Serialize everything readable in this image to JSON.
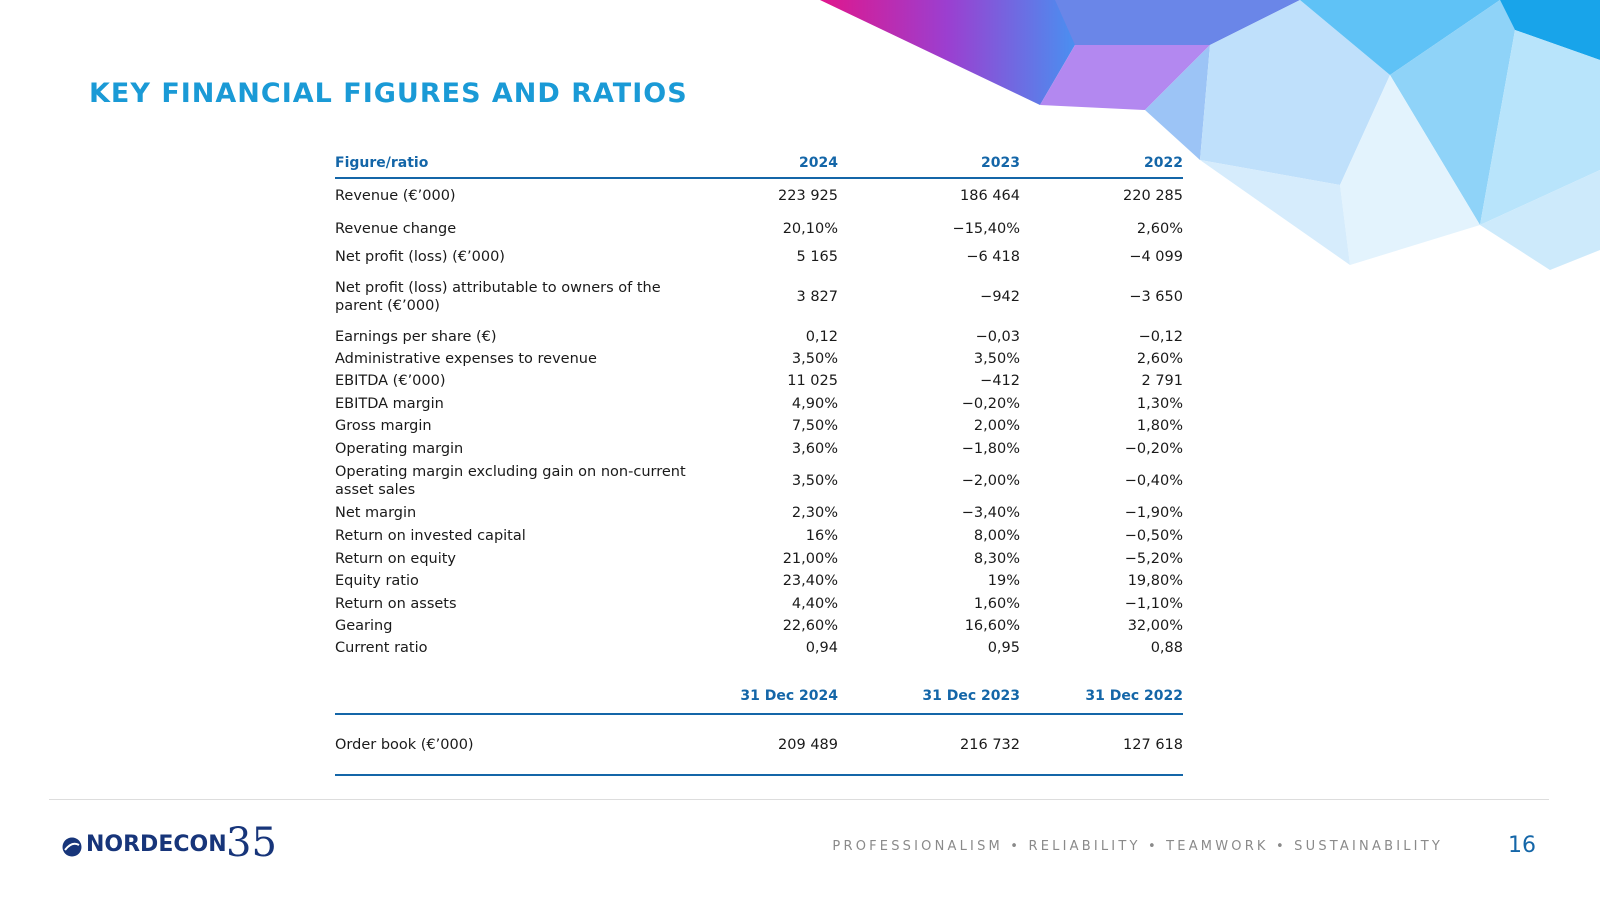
{
  "title": "KEY FINANCIAL FIGURES AND RATIOS",
  "table": {
    "header": [
      "Figure/ratio",
      "2024",
      "2023",
      "2022"
    ],
    "rows": [
      [
        "Revenue (€’000)",
        "223 925",
        "186 464",
        "220 285"
      ],
      [
        "Revenue change",
        "20,10%",
        "−15,40%",
        "2,60%"
      ],
      [
        "Net profit (loss) (€’000)",
        "5 165",
        "−6 418",
        "−4 099"
      ],
      [
        "Net profit (loss) attributable to owners of the parent (€’000)",
        "3 827",
        "−942",
        "−3 650"
      ],
      [
        "Earnings per share (€)",
        "0,12",
        "−0,03",
        "−0,12"
      ],
      [
        "Administrative expenses to revenue",
        "3,50%",
        "3,50%",
        "2,60%"
      ],
      [
        "EBITDA (€’000)",
        "11 025",
        "−412",
        "2 791"
      ],
      [
        "EBITDA margin",
        "4,90%",
        "−0,20%",
        "1,30%"
      ],
      [
        "Gross margin",
        "7,50%",
        "2,00%",
        "1,80%"
      ],
      [
        "Operating margin",
        "3,60%",
        "−1,80%",
        "−0,20%"
      ],
      [
        "Operating margin excluding gain on non-current asset sales",
        "3,50%",
        "−2,00%",
        "−0,40%"
      ],
      [
        "Net margin",
        "2,30%",
        "−3,40%",
        "−1,90%"
      ],
      [
        "Return on invested capital",
        "16%",
        "8,00%",
        "−0,50%"
      ],
      [
        "Return on equity",
        "21,00%",
        "8,30%",
        "−5,20%"
      ],
      [
        "Equity ratio",
        "23,40%",
        "19%",
        "19,80%"
      ],
      [
        "Return on assets",
        "4,40%",
        "1,60%",
        "−1,10%"
      ],
      [
        "Gearing",
        "22,60%",
        "16,60%",
        "32,00%"
      ],
      [
        "Current ratio",
        "0,94",
        "0,95",
        "0,88"
      ]
    ]
  },
  "table2": {
    "header": [
      "31 Dec 2024",
      "31 Dec 2023",
      "31 Dec 2022"
    ],
    "rows": [
      [
        "Order book (€’000)",
        "209 489",
        "216 732",
        "127 618"
      ]
    ]
  },
  "footer": {
    "logo": "NORDECON",
    "logo_number": "35",
    "tagline": "PROFESSIONALISM • RELIABILITY • TEAMWORK • SUSTAINABILITY",
    "page": "16"
  }
}
